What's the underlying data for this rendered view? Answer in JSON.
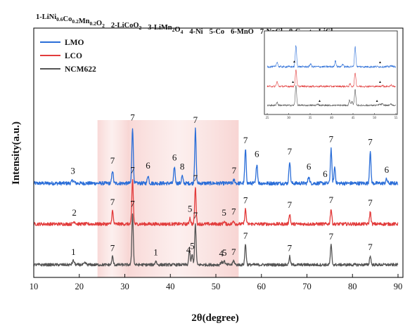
{
  "chart_data": {
    "type": "line",
    "title": "",
    "xlabel": "2θ(degree)",
    "ylabel": "Intensity(a.u.)",
    "xlim": [
      10,
      90
    ],
    "xticks": [
      "10",
      "20",
      "30",
      "40",
      "50",
      "60",
      "70",
      "80",
      "90"
    ],
    "phase_legend": {
      "items": [
        {
          "num": "1",
          "text": "-LiNi",
          "sub1": "0.6",
          "mid1": "Co",
          "sub2": "0.2",
          "mid2": "Mn",
          "sub3": "0.2",
          "mid3": "O",
          "sub4": "2"
        },
        {
          "num": "2",
          "text": "-LiCoO",
          "sub1": "2"
        },
        {
          "num": "3",
          "text": "-LiMn",
          "sub1": "2",
          "mid1": "O",
          "sub2": "4"
        },
        {
          "num": "4",
          "text": "-Ni"
        },
        {
          "num": "5",
          "text": "-Co"
        },
        {
          "num": "6",
          "text": "-MnO"
        },
        {
          "num": "7",
          "text": "-NaCl"
        },
        {
          "num": "8",
          "text": "-C"
        },
        {
          "num": "▲",
          "text": " -LiCl"
        }
      ]
    },
    "highlight_regions": [
      [
        24,
        31
      ],
      [
        31,
        55
      ]
    ],
    "series": [
      {
        "name": "LMO",
        "color": "#2b6ed8",
        "offset": 2.0,
        "noise": 0.045,
        "peaks": [
          {
            "x": 18.6,
            "h": 0.07,
            "w": 0.35
          },
          {
            "x": 27.3,
            "h": 0.32,
            "w": 0.22
          },
          {
            "x": 31.7,
            "h": 1.38,
            "w": 0.22
          },
          {
            "x": 35.1,
            "h": 0.2,
            "w": 0.22
          },
          {
            "x": 40.9,
            "h": 0.4,
            "w": 0.22
          },
          {
            "x": 42.6,
            "h": 0.18,
            "w": 0.22
          },
          {
            "x": 45.5,
            "h": 1.32,
            "w": 0.22
          },
          {
            "x": 54.0,
            "h": 0.08,
            "w": 0.25
          },
          {
            "x": 56.5,
            "h": 0.82,
            "w": 0.22
          },
          {
            "x": 59.0,
            "h": 0.49,
            "w": 0.22
          },
          {
            "x": 66.2,
            "h": 0.55,
            "w": 0.22
          },
          {
            "x": 70.4,
            "h": 0.18,
            "w": 0.22
          },
          {
            "x": 75.3,
            "h": 0.85,
            "w": 0.22
          },
          {
            "x": 76.1,
            "h": 0.4,
            "w": 0.22
          },
          {
            "x": 83.9,
            "h": 0.78,
            "w": 0.22
          },
          {
            "x": 87.5,
            "h": 0.1,
            "w": 0.25
          }
        ]
      },
      {
        "name": "LCO",
        "color": "#e23c3c",
        "offset": 1.0,
        "noise": 0.04,
        "peaks": [
          {
            "x": 18.9,
            "h": 0.06,
            "w": 0.35
          },
          {
            "x": 27.3,
            "h": 0.32,
            "w": 0.22
          },
          {
            "x": 31.7,
            "h": 1.1,
            "w": 0.22
          },
          {
            "x": 44.3,
            "h": 0.15,
            "w": 0.22
          },
          {
            "x": 45.5,
            "h": 0.9,
            "w": 0.22
          },
          {
            "x": 51.8,
            "h": 0.06,
            "w": 0.25
          },
          {
            "x": 53.9,
            "h": 0.08,
            "w": 0.25
          },
          {
            "x": 56.5,
            "h": 0.36,
            "w": 0.22
          },
          {
            "x": 66.2,
            "h": 0.25,
            "w": 0.22
          },
          {
            "x": 75.3,
            "h": 0.37,
            "w": 0.22
          },
          {
            "x": 83.9,
            "h": 0.3,
            "w": 0.22
          }
        ]
      },
      {
        "name": "NCM622",
        "color": "#555555",
        "offset": 0.0,
        "noise": 0.035,
        "peaks": [
          {
            "x": 18.7,
            "h": 0.1,
            "w": 0.3
          },
          {
            "x": 21.3,
            "h": 0.04,
            "w": 0.3
          },
          {
            "x": 27.3,
            "h": 0.2,
            "w": 0.22
          },
          {
            "x": 31.7,
            "h": 1.28,
            "w": 0.22
          },
          {
            "x": 36.8,
            "h": 0.09,
            "w": 0.25
          },
          {
            "x": 44.2,
            "h": 0.35,
            "w": 0.22
          },
          {
            "x": 44.8,
            "h": 0.25,
            "w": 0.22
          },
          {
            "x": 45.5,
            "h": 1.0,
            "w": 0.22
          },
          {
            "x": 51.2,
            "h": 0.07,
            "w": 0.25
          },
          {
            "x": 51.8,
            "h": 0.1,
            "w": 0.25
          },
          {
            "x": 53.9,
            "h": 0.1,
            "w": 0.25
          },
          {
            "x": 56.5,
            "h": 0.5,
            "w": 0.22
          },
          {
            "x": 66.2,
            "h": 0.2,
            "w": 0.22
          },
          {
            "x": 75.3,
            "h": 0.48,
            "w": 0.22
          },
          {
            "x": 83.9,
            "h": 0.22,
            "w": 0.22
          }
        ]
      }
    ],
    "peak_labels": [
      {
        "series": "LMO",
        "x": 18.6,
        "text": "3"
      },
      {
        "series": "LMO",
        "x": 27.3,
        "text": "7"
      },
      {
        "series": "LMO",
        "x": 31.7,
        "text": "7"
      },
      {
        "series": "LMO",
        "x": 35.1,
        "text": "6"
      },
      {
        "series": "LMO",
        "x": 40.9,
        "text": "6"
      },
      {
        "series": "LMO",
        "x": 42.6,
        "text": "8"
      },
      {
        "series": "LMO",
        "x": 45.5,
        "text": "7"
      },
      {
        "series": "LMO",
        "x": 54.0,
        "text": "7"
      },
      {
        "series": "LMO",
        "x": 56.5,
        "text": "7"
      },
      {
        "series": "LMO",
        "x": 59.0,
        "text": "6"
      },
      {
        "series": "LMO",
        "x": 66.2,
        "text": "7"
      },
      {
        "series": "LMO",
        "x": 70.4,
        "text": "6"
      },
      {
        "series": "LMO",
        "x": 74.0,
        "text": "6"
      },
      {
        "series": "LMO",
        "x": 75.3,
        "text": "7"
      },
      {
        "series": "LMO",
        "x": 83.9,
        "text": "7"
      },
      {
        "series": "LMO",
        "x": 87.5,
        "text": "6"
      },
      {
        "series": "LCO",
        "x": 18.9,
        "text": "2"
      },
      {
        "series": "LCO",
        "x": 27.3,
        "text": "7"
      },
      {
        "series": "LCO",
        "x": 31.7,
        "text": "7"
      },
      {
        "series": "LCO",
        "x": 44.3,
        "text": "5"
      },
      {
        "series": "LCO",
        "x": 45.5,
        "text": "7"
      },
      {
        "series": "LCO",
        "x": 51.8,
        "text": "5"
      },
      {
        "series": "LCO",
        "x": 53.9,
        "text": "7"
      },
      {
        "series": "LCO",
        "x": 56.5,
        "text": "7"
      },
      {
        "series": "LCO",
        "x": 66.2,
        "text": "7"
      },
      {
        "series": "LCO",
        "x": 75.3,
        "text": "7"
      },
      {
        "series": "LCO",
        "x": 83.9,
        "text": "7"
      },
      {
        "series": "NCM622",
        "x": 18.7,
        "text": "1"
      },
      {
        "series": "NCM622",
        "x": 27.3,
        "text": "7"
      },
      {
        "series": "NCM622",
        "x": 31.7,
        "text": "7"
      },
      {
        "series": "NCM622",
        "x": 36.8,
        "text": "1"
      },
      {
        "series": "NCM622",
        "x": 44.0,
        "text": "4"
      },
      {
        "series": "NCM622",
        "x": 44.8,
        "text": "5"
      },
      {
        "series": "NCM622",
        "x": 45.5,
        "text": "7"
      },
      {
        "series": "NCM622",
        "x": 51.2,
        "text": "4"
      },
      {
        "series": "NCM622",
        "x": 51.9,
        "text": "5"
      },
      {
        "series": "NCM622",
        "x": 53.9,
        "text": "7"
      },
      {
        "series": "NCM622",
        "x": 56.5,
        "text": "7"
      },
      {
        "series": "NCM622",
        "x": 66.2,
        "text": "7"
      },
      {
        "series": "NCM622",
        "x": 75.3,
        "text": "7"
      },
      {
        "series": "NCM622",
        "x": 83.9,
        "text": "7"
      }
    ],
    "legend": {
      "placement": "top-left",
      "entries": [
        "LMO",
        "LCO",
        "NCM622"
      ]
    },
    "inset": {
      "placement": "top-right",
      "xlim": [
        25,
        55
      ],
      "xticks": [
        "25",
        "30",
        "35",
        "40",
        "45",
        "50",
        "55"
      ],
      "markers": [
        {
          "series": "LMO",
          "x": 31.3,
          "symbol": "▲"
        },
        {
          "series": "LMO",
          "x": 51.3,
          "symbol": "▲"
        },
        {
          "series": "LCO",
          "x": 31.0,
          "symbol": "▲"
        },
        {
          "series": "LCO",
          "x": 51.3,
          "symbol": "▲"
        },
        {
          "series": "NCM622",
          "x": 37.2,
          "symbol": "▲"
        },
        {
          "series": "NCM622",
          "x": 50.6,
          "symbol": "▲"
        }
      ]
    }
  }
}
